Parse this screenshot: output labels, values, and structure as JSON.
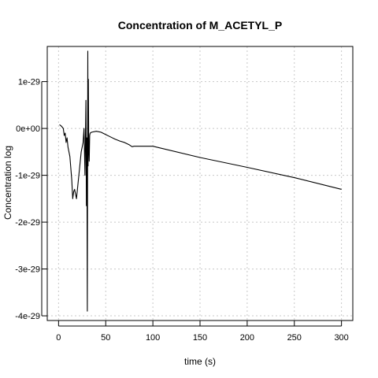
{
  "chart_data": {
    "type": "line",
    "title": "Concentration of M_ACETYL_P",
    "xlabel": "time (s)",
    "ylabel": "Concentration log",
    "xlim": [
      -12,
      312
    ],
    "ylim": [
      -4.1e-29,
      1.75e-29
    ],
    "grid": true,
    "x_ticks": [
      {
        "value": 0,
        "label": "0"
      },
      {
        "value": 50,
        "label": "50"
      },
      {
        "value": 100,
        "label": "100"
      },
      {
        "value": 150,
        "label": "150"
      },
      {
        "value": 200,
        "label": "200"
      },
      {
        "value": 250,
        "label": "250"
      },
      {
        "value": 300,
        "label": "300"
      }
    ],
    "y_ticks": [
      {
        "value": 1e-29,
        "label": "1e-29"
      },
      {
        "value": 0,
        "label": "0e+00"
      },
      {
        "value": -1e-29,
        "label": "-1e-29"
      },
      {
        "value": -2e-29,
        "label": "-2e-29"
      },
      {
        "value": -3e-29,
        "label": "-3e-29"
      },
      {
        "value": -4e-29,
        "label": "-4e-29"
      }
    ],
    "series": [
      {
        "color": "#000000",
        "x": [
          1,
          3,
          5,
          6,
          7,
          8,
          9,
          10,
          12,
          14,
          15,
          16,
          17,
          18,
          19,
          20,
          22,
          24,
          26,
          27,
          28,
          29,
          29.5,
          30,
          30.5,
          31,
          31.3,
          31.6,
          32,
          32.5,
          33,
          33.5,
          35,
          40,
          45,
          50,
          55,
          60,
          65,
          70,
          75,
          78,
          80,
          100,
          150,
          200,
          250,
          300
        ],
        "y": [
          8e-31,
          5e-31,
          0.0,
          -1.5e-30,
          -1e-30,
          -3e-30,
          -2e-30,
          -4e-30,
          -6e-30,
          -1.1e-29,
          -1.5e-29,
          -1.35e-29,
          -1.3e-29,
          -1.4e-29,
          -1.5e-29,
          -1.3e-29,
          -9e-30,
          -5e-30,
          -3e-30,
          0.0,
          -1e-29,
          6e-30,
          -1.65e-29,
          -2e-30,
          -3.9e-29,
          1.65e-29,
          -8e-30,
          1.05e-29,
          -4e-30,
          -7e-30,
          -1.5e-30,
          -1e-30,
          -8e-31,
          -6e-31,
          -8e-31,
          -1.3e-30,
          -1.8e-30,
          -2.3e-30,
          -2.7e-30,
          -3e-30,
          -3.5e-30,
          -3.9e-30,
          -3.8e-30,
          -3.8e-30,
          -6.2e-30,
          -8.3e-30,
          -1.05e-29,
          -1.3e-29
        ]
      }
    ]
  }
}
